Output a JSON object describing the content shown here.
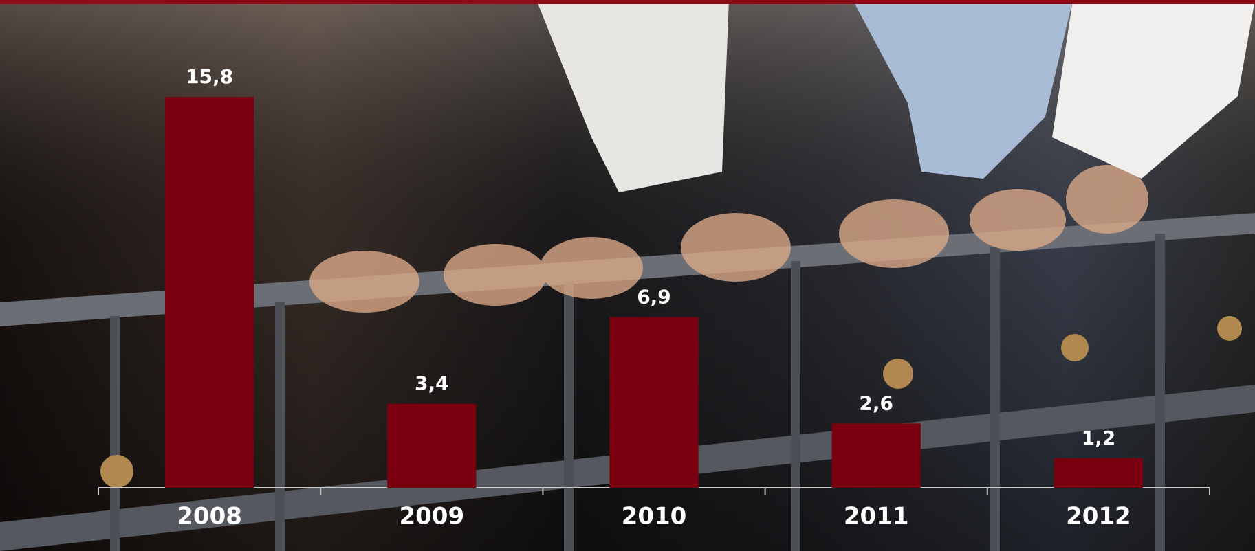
{
  "chart_data": {
    "type": "bar",
    "categories": [
      "2008",
      "2009",
      "2010",
      "2011",
      "2012"
    ],
    "values": [
      15.8,
      3.4,
      6.9,
      2.6,
      1.2
    ],
    "value_labels": [
      "15,8",
      "3,4",
      "6,9",
      "2,6",
      "1,2"
    ],
    "color": "#7a0010",
    "ylim": [
      0,
      18
    ]
  }
}
